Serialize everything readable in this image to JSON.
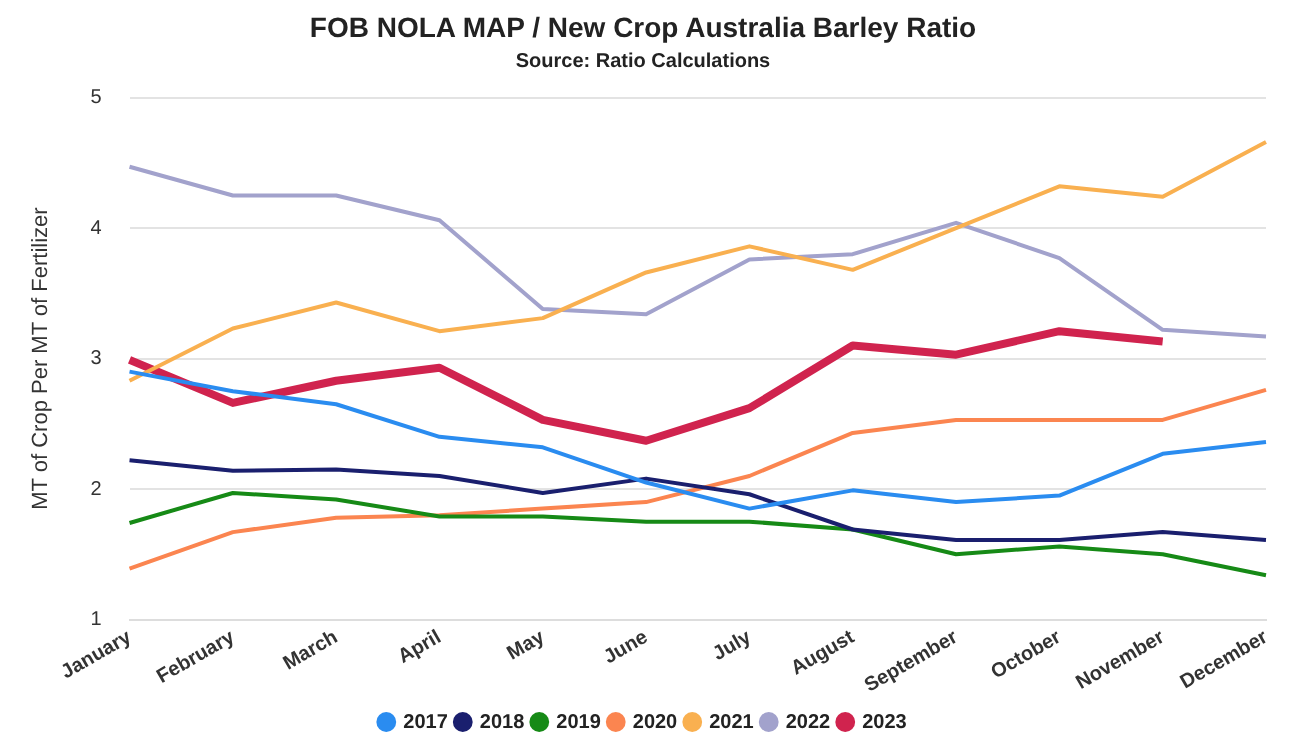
{
  "chart_data": {
    "type": "line",
    "title": "FOB NOLA MAP / New Crop Australia Barley Ratio",
    "subtitle": "Source: Ratio Calculations",
    "ylabel": "MT of Crop Per MT of Fertilizer",
    "categories": [
      "January",
      "February",
      "March",
      "April",
      "May",
      "June",
      "July",
      "August",
      "September",
      "October",
      "November",
      "December"
    ],
    "ylim": [
      1,
      5
    ],
    "yticks": [
      1,
      2,
      3,
      4,
      5
    ],
    "grid": "y",
    "legend": "bottom",
    "marker": "none",
    "series": [
      {
        "name": "2017",
        "color": "#2a8cf0",
        "values": [
          2.9,
          2.75,
          2.65,
          2.4,
          2.32,
          2.05,
          1.85,
          1.99,
          1.9,
          1.95,
          2.27,
          2.36
        ]
      },
      {
        "name": "2018",
        "color": "#1a1f6e",
        "values": [
          2.22,
          2.14,
          2.15,
          2.1,
          1.97,
          2.08,
          1.96,
          1.69,
          1.61,
          1.61,
          1.67,
          1.61
        ]
      },
      {
        "name": "2019",
        "color": "#168a16",
        "values": [
          1.74,
          1.97,
          1.92,
          1.79,
          1.79,
          1.75,
          1.75,
          1.69,
          1.5,
          1.56,
          1.5,
          1.34
        ]
      },
      {
        "name": "2020",
        "color": "#fb8550",
        "values": [
          1.39,
          1.67,
          1.78,
          1.8,
          1.85,
          1.9,
          2.1,
          2.43,
          2.53,
          2.53,
          2.53,
          2.76
        ]
      },
      {
        "name": "2021",
        "color": "#f9b050",
        "values": [
          2.83,
          3.23,
          3.43,
          3.21,
          3.31,
          3.66,
          3.86,
          3.68,
          4.0,
          4.32,
          4.24,
          4.66
        ]
      },
      {
        "name": "2022",
        "color": "#a2a2cc",
        "values": [
          4.47,
          4.25,
          4.25,
          4.06,
          3.38,
          3.34,
          3.76,
          3.8,
          4.04,
          3.77,
          3.22,
          3.17
        ]
      },
      {
        "name": "2023",
        "color": "#d0234e",
        "values": [
          2.99,
          2.66,
          2.83,
          2.93,
          2.53,
          2.37,
          2.62,
          3.1,
          3.03,
          3.21,
          3.13,
          null
        ]
      }
    ]
  }
}
